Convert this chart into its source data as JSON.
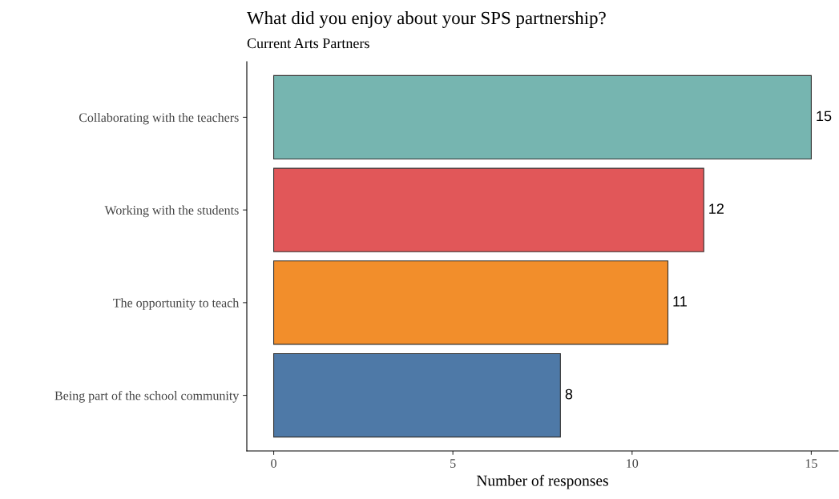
{
  "chart_data": {
    "type": "bar",
    "orientation": "horizontal",
    "title": "What did you enjoy about your SPS partnership?",
    "subtitle": "Current Arts Partners",
    "xlabel": "Number of responses",
    "categories": [
      "Collaborating with the teachers",
      "Working with the students",
      "The opportunity to teach",
      "Being part of the school community"
    ],
    "values": [
      15,
      12,
      11,
      8
    ],
    "colors": [
      "#76b5b0",
      "#e15759",
      "#f28e2b",
      "#4e79a7"
    ],
    "xlim": [
      -0.75,
      15.75
    ],
    "xticks": [
      0,
      5,
      10,
      15
    ],
    "data_labels": true,
    "grid": false,
    "legend": false
  }
}
